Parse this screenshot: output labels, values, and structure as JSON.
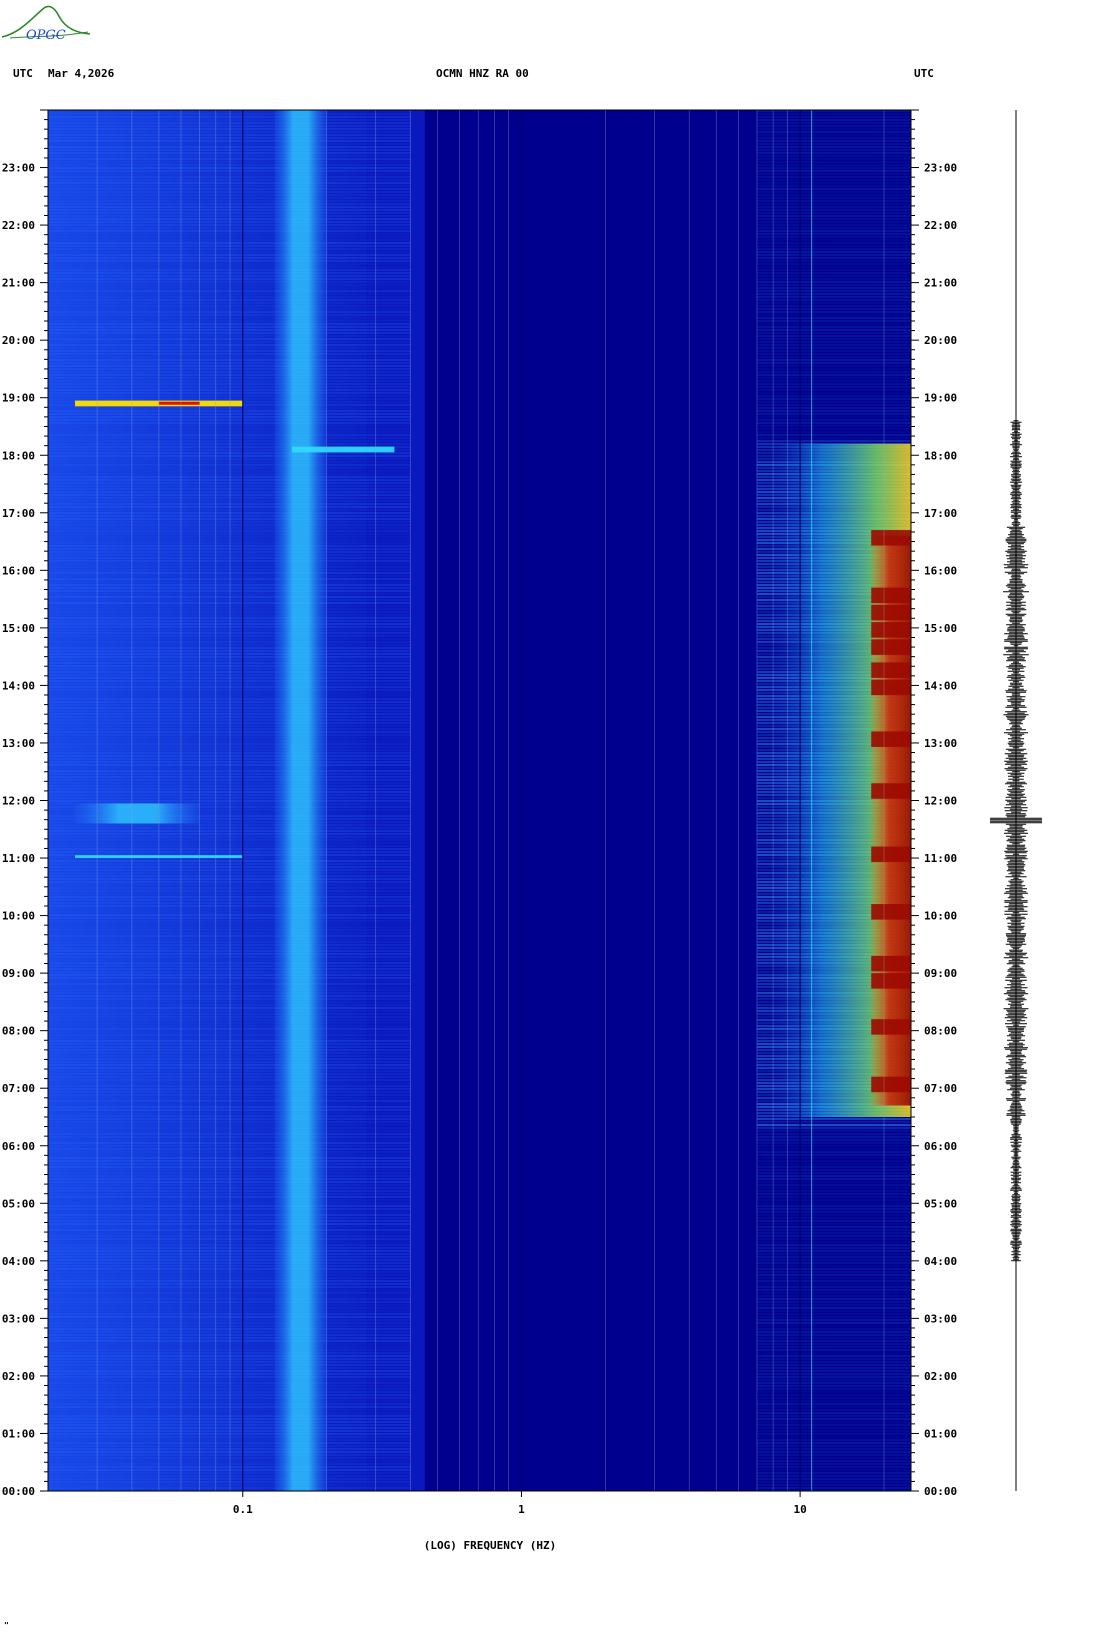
{
  "logo": {
    "text": "OPGC",
    "icon": "opgc-volcano-logo"
  },
  "header": {
    "left_utc": "UTC",
    "date": "Mar 4,2026",
    "station": "OCMN HNZ RA 00",
    "right_utc": "UTC"
  },
  "footer_mark": "\"",
  "colors": {
    "background": "#00008f",
    "low": "#1a3ce0",
    "high": "#8b0000"
  },
  "chart_data": {
    "type": "heatmap",
    "title": "OCMN HNZ RA 00",
    "subtitle": "Mar 4,2026",
    "xlabel": "(LOG) FREQUENCY (HZ)",
    "ylabel": "UTC",
    "x_scale": "log",
    "xlim": [
      0.02,
      25
    ],
    "x_ticks": [
      0.1,
      1,
      10
    ],
    "x_tick_labels": [
      "0.1",
      "1",
      "10"
    ],
    "ylim_hours": [
      0,
      24
    ],
    "y_tick_labels": [
      "00:00",
      "01:00",
      "02:00",
      "03:00",
      "04:00",
      "05:00",
      "06:00",
      "07:00",
      "08:00",
      "09:00",
      "10:00",
      "11:00",
      "12:00",
      "13:00",
      "14:00",
      "15:00",
      "16:00",
      "17:00",
      "18:00",
      "19:00",
      "20:00",
      "21:00",
      "22:00",
      "23:00"
    ],
    "colormap": "jet",
    "features": [
      {
        "band_hz": [
          0.13,
          0.2
        ],
        "time_hours": [
          0,
          24
        ],
        "level": 0.45
      },
      {
        "band_hz": [
          0.025,
          0.1
        ],
        "time_hours": [
          18.85,
          18.95
        ],
        "level": 0.9
      },
      {
        "band_hz": [
          0.025,
          0.1
        ],
        "time_hours": [
          11.0,
          11.05
        ],
        "level": 0.5
      },
      {
        "band_hz": [
          0.025,
          0.07
        ],
        "time_hours": [
          11.6,
          11.95
        ],
        "level": 0.4
      },
      {
        "band_hz": [
          0.15,
          0.35
        ],
        "time_hours": [
          18.05,
          18.15
        ],
        "level": 0.45
      },
      {
        "band_hz": [
          8,
          25
        ],
        "time_hours": [
          6.5,
          18.2
        ],
        "level": 0.65
      },
      {
        "band_hz": [
          18,
          25
        ],
        "time_hours": [
          6.7,
          16.6
        ],
        "level": 1.0
      }
    ],
    "trace": {
      "label": "seismogram",
      "active_hours": [
        4.0,
        18.6
      ],
      "peak_hour": 11.65
    }
  }
}
